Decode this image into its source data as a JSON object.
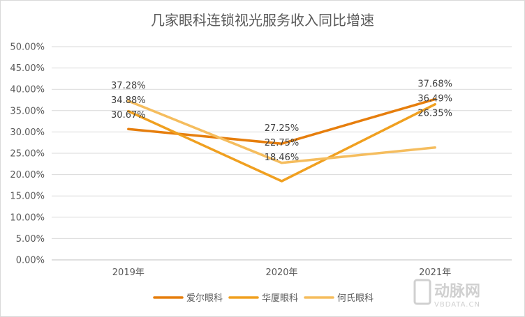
{
  "chart_data": {
    "type": "line",
    "title": "几家眼科连锁视光服务收入同比增速",
    "categories": [
      "2019年",
      "2020年",
      "2021年"
    ],
    "y_ticks": [
      "0.00%",
      "5.00%",
      "10.00%",
      "15.00%",
      "20.00%",
      "25.00%",
      "30.00%",
      "35.00%",
      "40.00%",
      "45.00%",
      "50.00%"
    ],
    "ylim": [
      0,
      50
    ],
    "grid": true,
    "legend_position": "bottom",
    "series": [
      {
        "name": "爱尔眼科",
        "color": "#e67e0d",
        "values": [
          30.67,
          27.25,
          37.68
        ],
        "labels": [
          "30.67%",
          "27.25%",
          "37.68%"
        ]
      },
      {
        "name": "华厦眼科",
        "color": "#f0a020",
        "values": [
          34.88,
          18.46,
          36.49
        ],
        "labels": [
          "34.88%",
          "18.46%",
          "36.49%"
        ]
      },
      {
        "name": "何氏眼科",
        "color": "#f5bd5e",
        "values": [
          37.28,
          22.75,
          26.35
        ],
        "labels": [
          "37.28%",
          "22.75%",
          "26.35%"
        ]
      }
    ]
  },
  "watermark": {
    "logo_text": "动脉网",
    "url_text": "VBDATA.CN"
  }
}
